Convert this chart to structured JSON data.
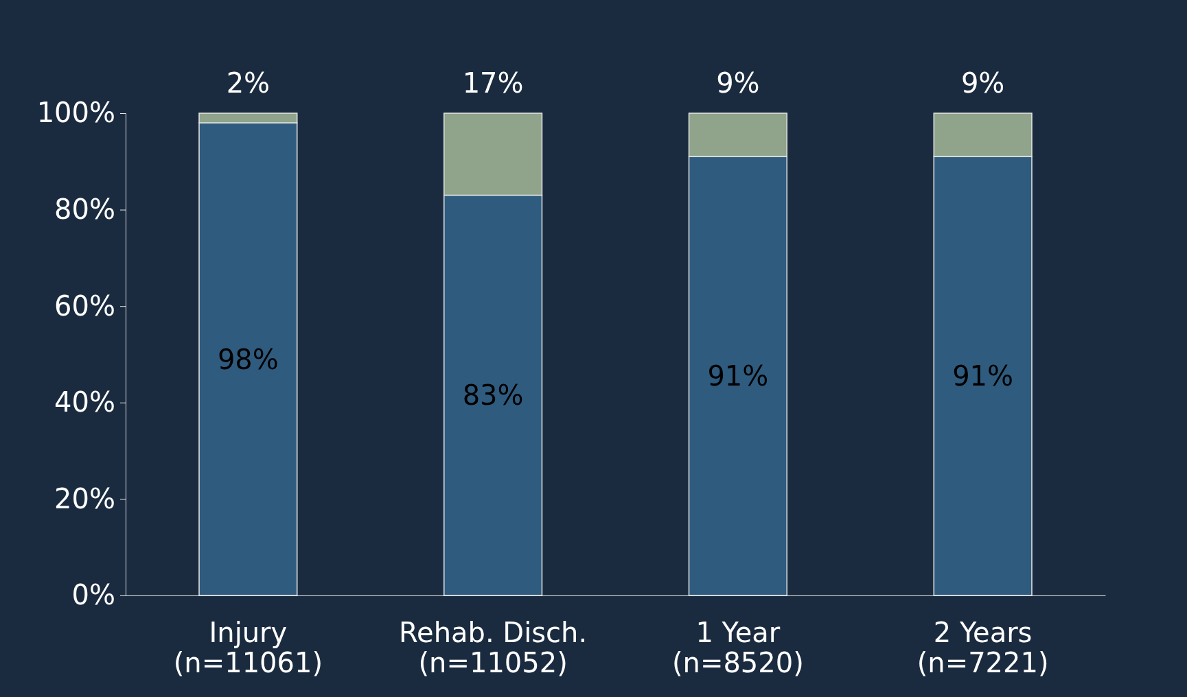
{
  "chart_data": {
    "type": "bar",
    "stacked": true,
    "categories": [
      "Injury\n(n=11061)",
      "Rehab. Disch.\n(n=11052)",
      "1 Year\n(n=8520)",
      "2 Years\n(n=7221)"
    ],
    "series": [
      {
        "color": "#2f5b7f",
        "values": [
          98,
          83,
          91,
          91
        ],
        "value_labels": [
          "98%",
          "83%",
          "91%",
          "91%"
        ]
      },
      {
        "color": "#90a48c",
        "values": [
          2,
          17,
          9,
          9
        ],
        "value_labels": [
          "2%",
          "17%",
          "9%",
          "9%"
        ]
      }
    ],
    "ylim": [
      0,
      100
    ],
    "yticks": [
      {
        "value": 0,
        "label": "0%"
      },
      {
        "value": 20,
        "label": "20%"
      },
      {
        "value": 40,
        "label": "40%"
      },
      {
        "value": 60,
        "label": "60%"
      },
      {
        "value": 80,
        "label": "80%"
      },
      {
        "value": 100,
        "label": "100%"
      }
    ],
    "grid": false
  }
}
